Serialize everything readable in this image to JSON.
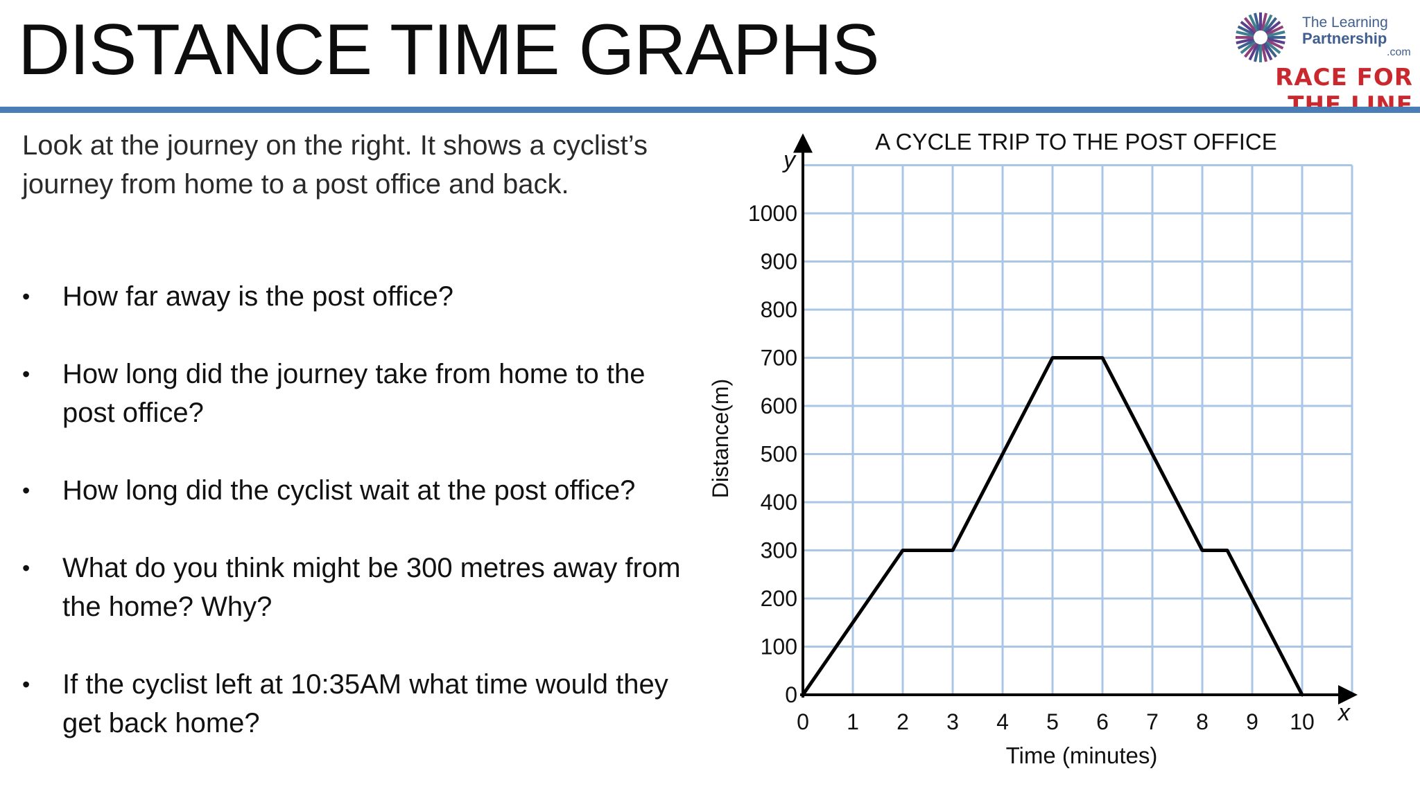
{
  "slide": {
    "title": "DISTANCE TIME GRAPHS",
    "intro": "Look at the journey on the right.  It shows a cyclist’s journey from home to a post office and back.",
    "questions": [
      "How far away is the post office?",
      "How long did the journey take from home to the post office?",
      "How long did the cyclist wait at the post office?",
      "What do you think might be 300 metres away from the home? Why?",
      "If the cyclist left at 10:35AM what time would they get back home?"
    ],
    "bullet": "•"
  },
  "logo": {
    "line1": "The Learning",
    "line2": "Partnership",
    "line3": ".com",
    "tagline": "RACE FOR THE LINE",
    "tagline_color": "#c8282e"
  },
  "colors": {
    "rule": "#4a7db5",
    "grid": "#a9c6e6",
    "line": "#000000"
  },
  "chart_data": {
    "type": "line",
    "title": "A CYCLE TRIP TO THE POST OFFICE",
    "xlabel": "Time (minutes)",
    "ylabel": "Distance(m)",
    "x_axis_letter": "x",
    "y_axis_letter": "y",
    "xlim": [
      0,
      11
    ],
    "ylim": [
      0,
      1100
    ],
    "x_ticks": [
      0,
      1,
      2,
      3,
      4,
      5,
      6,
      7,
      8,
      9,
      10
    ],
    "y_ticks": [
      0,
      100,
      200,
      300,
      400,
      500,
      600,
      700,
      800,
      900,
      1000
    ],
    "grid": true,
    "x": [
      0,
      2,
      3,
      5,
      6,
      8,
      8.5,
      10
    ],
    "y": [
      0,
      300,
      300,
      700,
      700,
      300,
      300,
      0
    ]
  }
}
